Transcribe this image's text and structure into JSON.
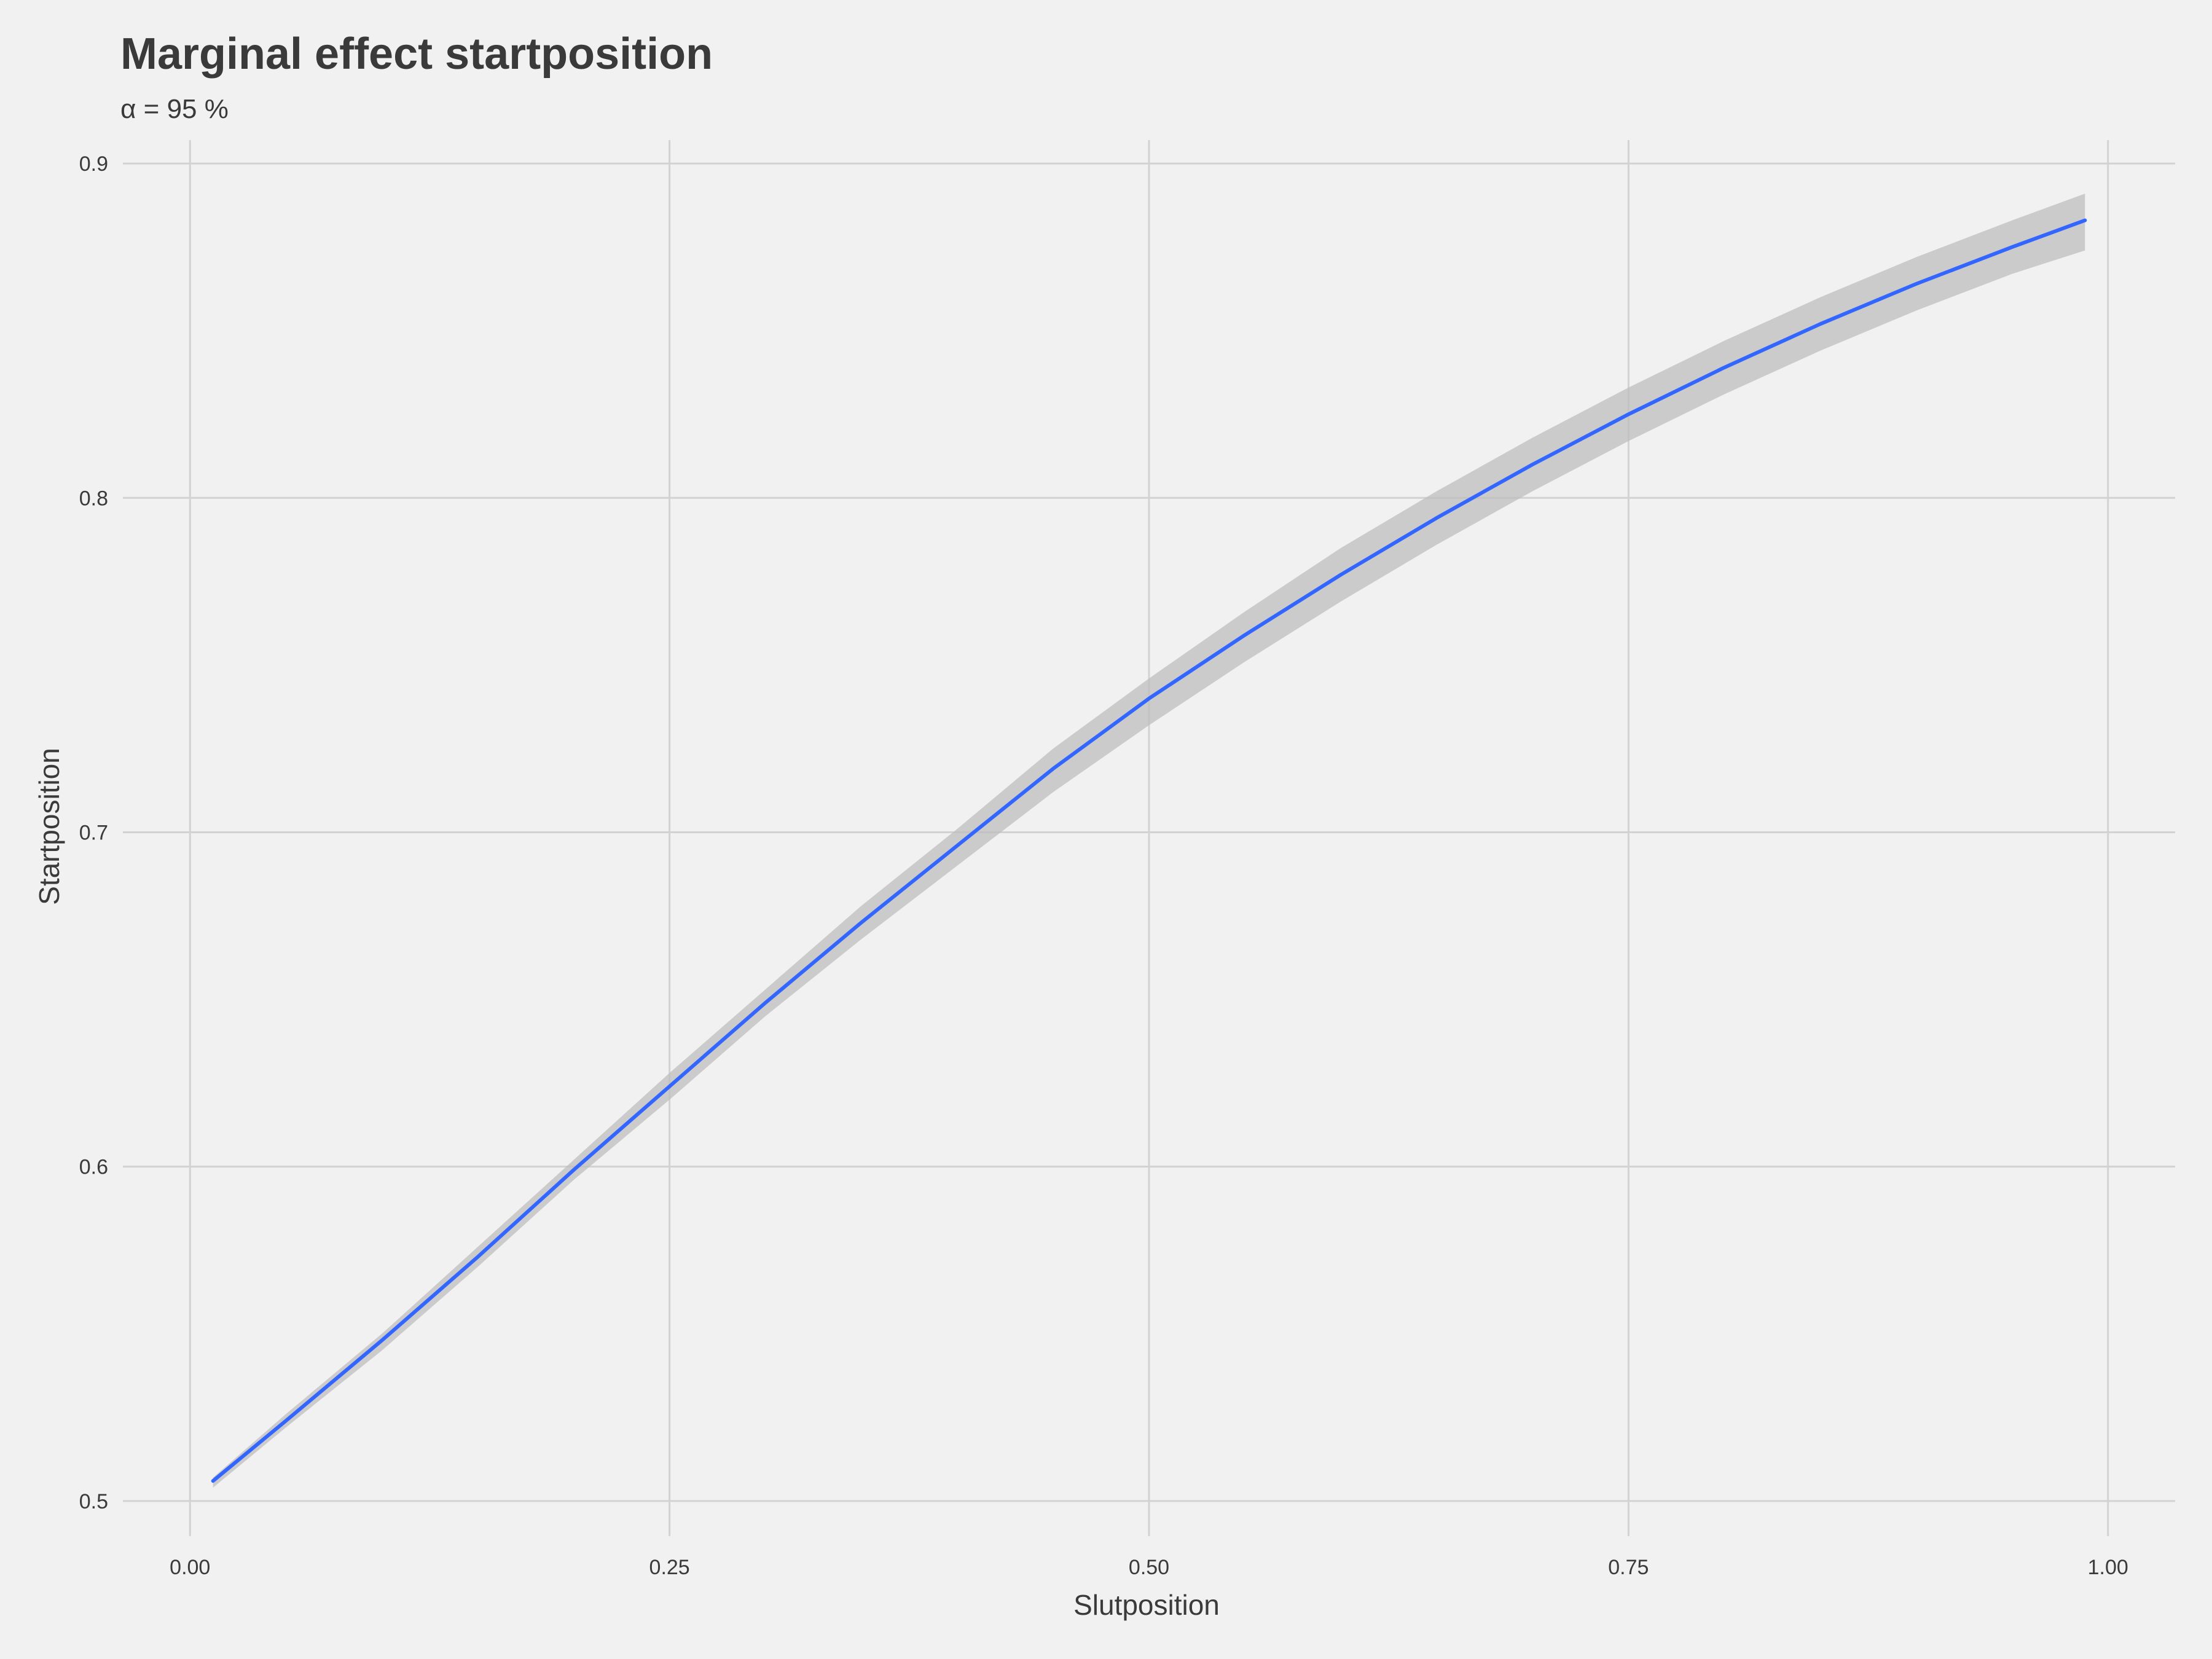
{
  "chart_data": {
    "type": "line",
    "title": "Marginal effect startposition",
    "subtitle": "α = 95 %",
    "xlabel": "Slutposition",
    "ylabel": "Startposition",
    "xlim": [
      -0.035,
      1.035
    ],
    "ylim": [
      0.4895,
      0.907
    ],
    "grid": true,
    "x_ticks": [
      0.0,
      0.25,
      0.5,
      0.75,
      1.0
    ],
    "x_tick_labels": [
      "0.00",
      "0.25",
      "0.50",
      "0.75",
      "1.00"
    ],
    "y_ticks": [
      0.5,
      0.6,
      0.7,
      0.8,
      0.9
    ],
    "y_tick_labels": [
      "0.5",
      "0.6",
      "0.7",
      "0.8",
      "0.9"
    ],
    "colors": {
      "background": "#f1f1f1",
      "grid": "#d2d2d2",
      "line": "#3366ff",
      "ribbon": "#bdbdbd",
      "text": "#3a3a3a"
    },
    "series": [
      {
        "x": [
          0.012,
          0.05,
          0.1,
          0.15,
          0.2,
          0.25,
          0.3,
          0.35,
          0.4,
          0.45,
          0.5,
          0.55,
          0.6,
          0.65,
          0.7,
          0.75,
          0.8,
          0.85,
          0.9,
          0.95,
          0.988
        ],
        "y": [
          0.506,
          0.524,
          0.548,
          0.573,
          0.599,
          0.624,
          0.649,
          0.673,
          0.696,
          0.719,
          0.74,
          0.759,
          0.777,
          0.794,
          0.81,
          0.825,
          0.839,
          0.852,
          0.864,
          0.875,
          0.883
        ],
        "lower": [
          0.504,
          0.522,
          0.545,
          0.57,
          0.596,
          0.62,
          0.645,
          0.668,
          0.69,
          0.712,
          0.732,
          0.751,
          0.769,
          0.786,
          0.802,
          0.817,
          0.831,
          0.844,
          0.856,
          0.867,
          0.874
        ],
        "upper": [
          0.507,
          0.526,
          0.55,
          0.576,
          0.602,
          0.628,
          0.653,
          0.678,
          0.701,
          0.725,
          0.746,
          0.766,
          0.785,
          0.802,
          0.818,
          0.833,
          0.847,
          0.86,
          0.872,
          0.883,
          0.891
        ]
      }
    ]
  }
}
